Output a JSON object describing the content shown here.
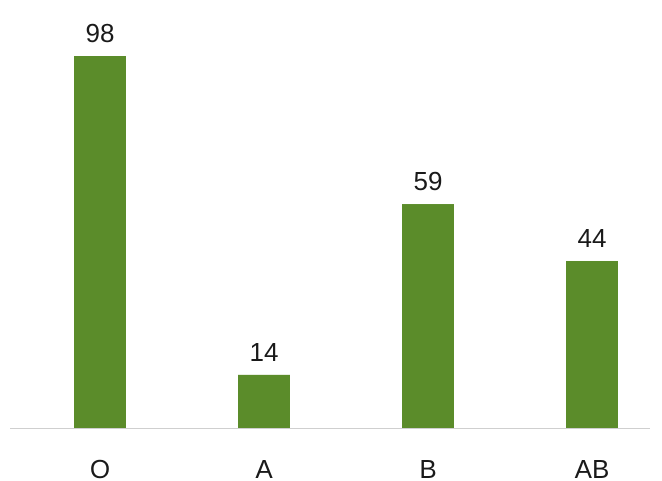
{
  "chart_data": {
    "type": "bar",
    "categories": [
      "O",
      "A",
      "B",
      "AB"
    ],
    "values": [
      98,
      14,
      59,
      44
    ],
    "data_labels": [
      "98",
      "14",
      "59",
      "44"
    ],
    "ylim": [
      0,
      98
    ],
    "grid": false,
    "legend": "none",
    "bar_color": "#5b8c2a",
    "axis_color": "#cfcfcf",
    "text_color": "#1a1a1a"
  }
}
